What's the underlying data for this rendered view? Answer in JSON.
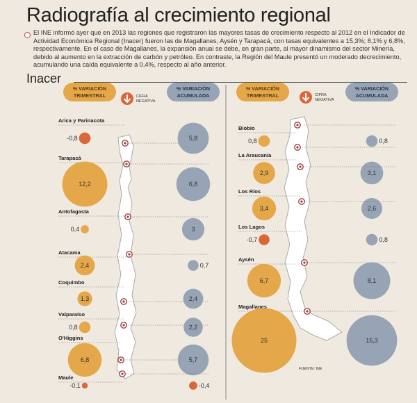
{
  "title": "Radiografía al crecimiento regional",
  "intro": "El INE informó ayer que en 2013 las regiones que registraron las mayores tasas de crecimiento respecto al 2012 en el Indicador de Actividad Económica Regional (Inacer) fueron las de Magallanes, Aysén y Tarapacá, con tasas equivalentes a 15,3%; 8,1% y 6,8%, respectivamente. En el caso de Magallanes, la expansión anual se debe, en gran parte, al mayor dinamismo del sector Minería, debido al aumento en la extracción de carbón y petróleo. En contraste, la Región del Maule presentó un moderado decrecimiento, acumulando una caída equivalente a 0,4%, respecto al año anterior.",
  "section_label": "Inacer",
  "source": "FUENTE: INE",
  "colors": {
    "trimestral": "#e4a84a",
    "acumulada": "#97a4b6",
    "negative": "#d9673a",
    "background": "#efe9df",
    "map": "#ffffff"
  },
  "chart_data": {
    "type": "bubble",
    "legend": {
      "trimestral": "% VARIACIÓN TRIMESTRAL",
      "acumulada": "% VARIACIÓN ACUMULADA",
      "negative": "CIFRA NEGATIVA",
      "negative_icon": "down-arrow-icon"
    },
    "regions": [
      {
        "name": "Arica y Parinacota",
        "trimestral": -0.8,
        "trimestral_label": "-0,8",
        "acumulada": 5.8,
        "acumulada_label": "5,8"
      },
      {
        "name": "Tarapacá",
        "trimestral": 12.2,
        "trimestral_label": "12,2",
        "acumulada": 6.8,
        "acumulada_label": "6,8"
      },
      {
        "name": "Antofagasta",
        "trimestral": 0.4,
        "trimestral_label": "0,4",
        "acumulada": 3,
        "acumulada_label": "3"
      },
      {
        "name": "Atacama",
        "trimestral": 2.4,
        "trimestral_label": "2,4",
        "acumulada": 0.7,
        "acumulada_label": "0,7"
      },
      {
        "name": "Coquimbo",
        "trimestral": 1.3,
        "trimestral_label": "1,3",
        "acumulada": 2.4,
        "acumulada_label": "2,4"
      },
      {
        "name": "Valparaíso",
        "trimestral": 0.8,
        "trimestral_label": "0,8",
        "acumulada": 2.2,
        "acumulada_label": "2,2"
      },
      {
        "name": "O'Higgins",
        "trimestral": 6.8,
        "trimestral_label": "6,8",
        "acumulada": 5.7,
        "acumulada_label": "5,7"
      },
      {
        "name": "Maule",
        "trimestral": -0.1,
        "trimestral_label": "-0,1",
        "acumulada": -0.4,
        "acumulada_label": "-0,4"
      },
      {
        "name": "Biobío",
        "trimestral": 0.8,
        "trimestral_label": "0,8",
        "acumulada": 0.8,
        "acumulada_label": "0,8"
      },
      {
        "name": "La Araucanía",
        "trimestral": 2.9,
        "trimestral_label": "2,9",
        "acumulada": 3.1,
        "acumulada_label": "3,1"
      },
      {
        "name": "Los Ríos",
        "trimestral": 3.4,
        "trimestral_label": "3,4",
        "acumulada": 2.6,
        "acumulada_label": "2,6"
      },
      {
        "name": "Los Lagos",
        "trimestral": -0.7,
        "trimestral_label": "-0,7",
        "acumulada": 0.8,
        "acumulada_label": "0,8"
      },
      {
        "name": "Aysén",
        "trimestral": 6.7,
        "trimestral_label": "6,7",
        "acumulada": 8.1,
        "acumulada_label": "8,1"
      },
      {
        "name": "Magallanes",
        "trimestral": 25,
        "trimestral_label": "25",
        "acumulada": 15.3,
        "acumulada_label": "15,3"
      }
    ]
  }
}
